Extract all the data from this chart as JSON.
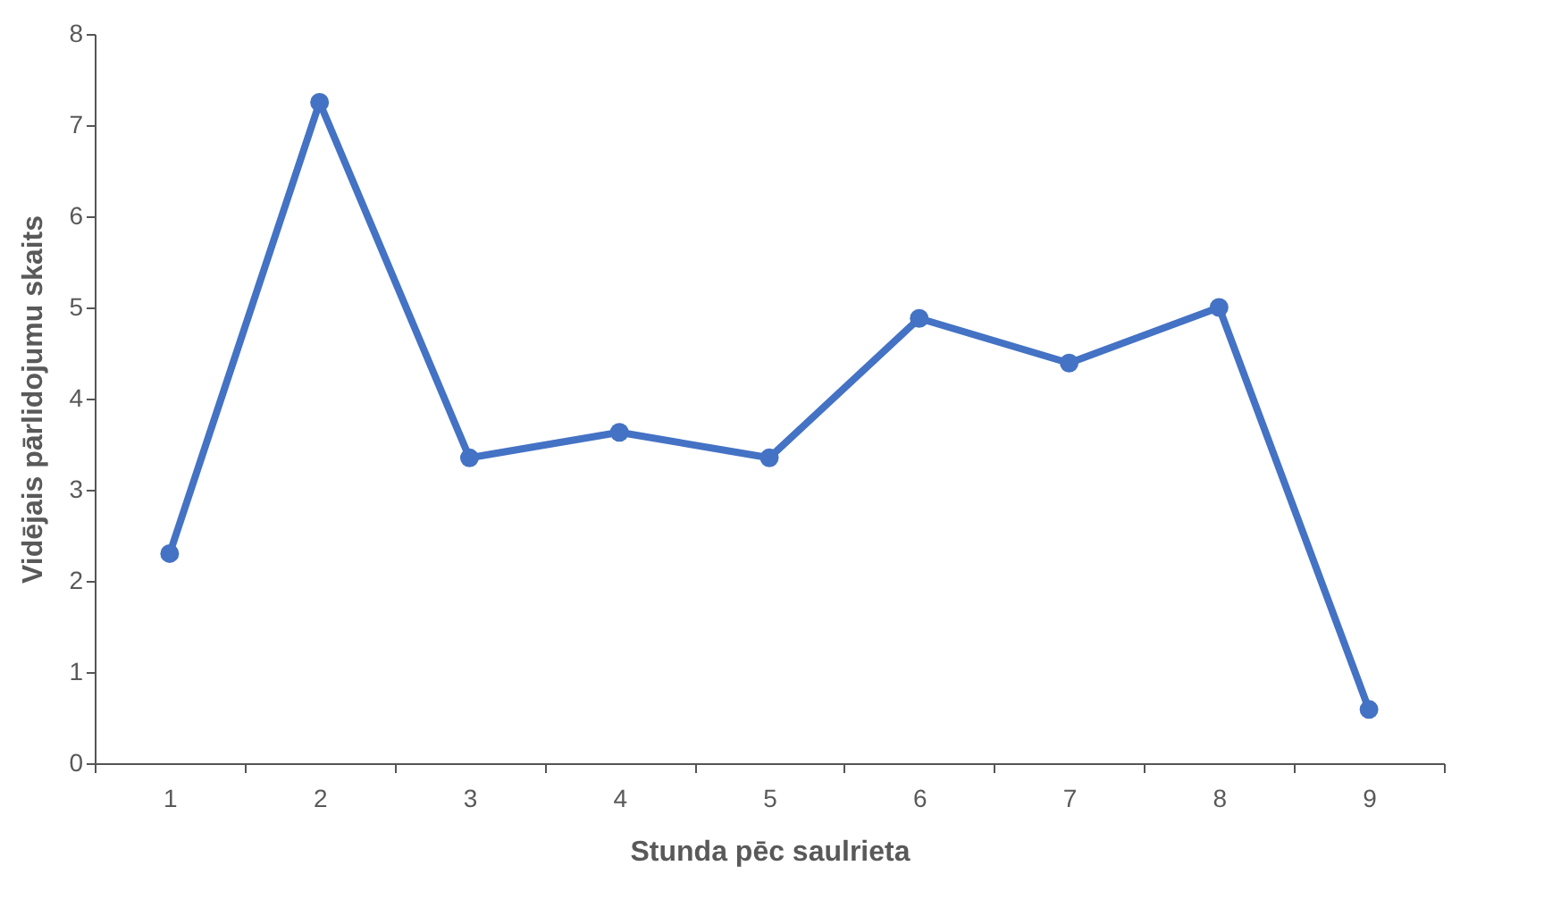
{
  "chart_data": {
    "type": "line",
    "xlabel": "Stunda pēc saulrieta",
    "ylabel": "Vidējais pārlidojumu skaits",
    "categories": [
      "1",
      "2",
      "3",
      "4",
      "5",
      "6",
      "7",
      "8",
      "9"
    ],
    "series": [
      {
        "color": "#4472c4",
        "values": [
          2.3,
          7.25,
          3.35,
          3.63,
          3.35,
          4.88,
          4.39,
          5.0,
          0.59
        ]
      }
    ],
    "ylim": [
      0,
      8
    ],
    "yticks": [
      0,
      1,
      2,
      3,
      4,
      5,
      6,
      7,
      8
    ],
    "grid": false,
    "legend": false,
    "marker": "circle",
    "line_style": "solid"
  }
}
